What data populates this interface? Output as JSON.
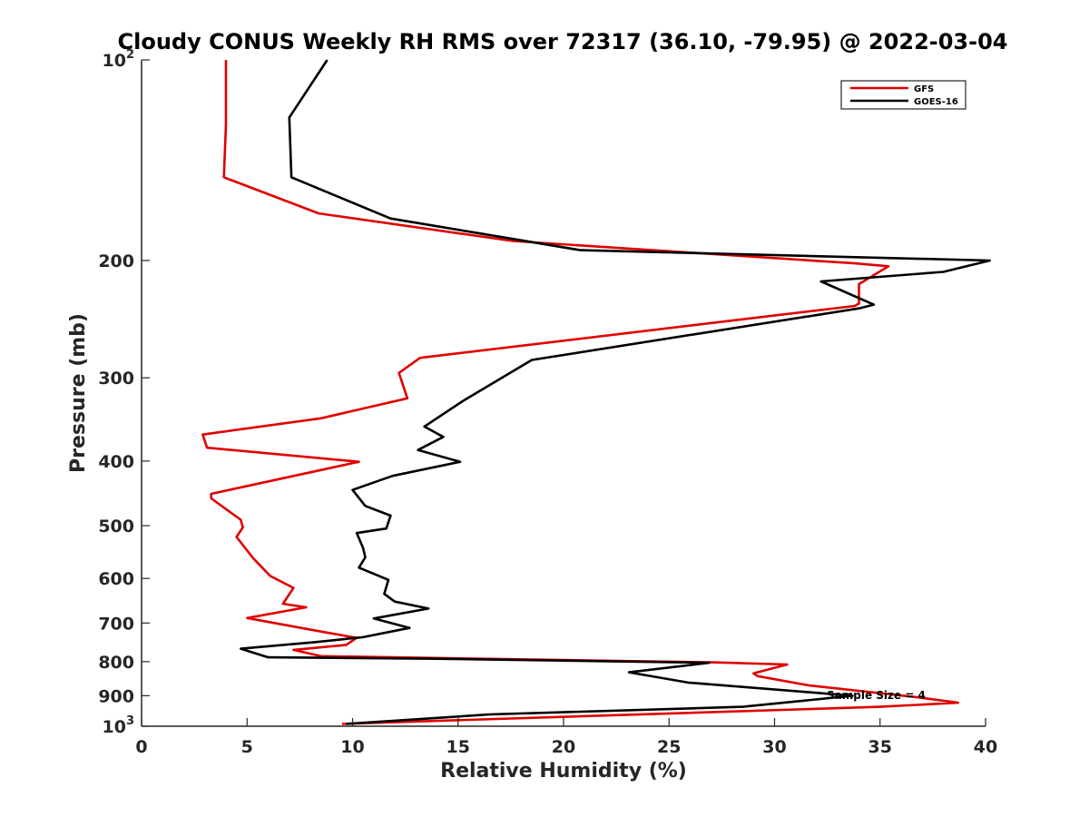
{
  "chart_data": {
    "type": "line",
    "title": "Cloudy CONUS Weekly RH RMS over 72317 (36.10, -79.95) @ 2022-03-04",
    "xlabel": "Relative Humidity (%)",
    "ylabel": "Pressure (mb)",
    "xlim": [
      0,
      40
    ],
    "ylim": [
      100,
      1000
    ],
    "y_scale": "log",
    "y_reversed": true,
    "x_ticks": [
      0,
      5,
      10,
      15,
      20,
      25,
      30,
      35,
      40
    ],
    "y_ticks": [
      {
        "value": 100,
        "base": "10",
        "exp": "2"
      },
      {
        "value": 200,
        "label": "200"
      },
      {
        "value": 300,
        "label": "300"
      },
      {
        "value": 400,
        "label": "400"
      },
      {
        "value": 500,
        "label": "500"
      },
      {
        "value": 600,
        "label": "600"
      },
      {
        "value": 700,
        "label": "700"
      },
      {
        "value": 800,
        "label": "800"
      },
      {
        "value": 900,
        "label": "900"
      },
      {
        "value": 1000,
        "base": "10",
        "exp": "3"
      }
    ],
    "grid": false,
    "legend_position": "top-right",
    "series": [
      {
        "name": "GFS",
        "color": "#e00000",
        "points": [
          [
            4.0,
            100
          ],
          [
            4.0,
            125
          ],
          [
            3.9,
            150
          ],
          [
            8.4,
            170
          ],
          [
            17.6,
            187
          ],
          [
            33.8,
            202
          ],
          [
            35.4,
            204
          ],
          [
            34.0,
            217
          ],
          [
            34.0,
            232
          ],
          [
            33.8,
            234
          ],
          [
            13.2,
            280
          ],
          [
            12.2,
            295
          ],
          [
            12.6,
            322
          ],
          [
            8.5,
            345
          ],
          [
            2.9,
            365
          ],
          [
            3.1,
            382
          ],
          [
            10.3,
            401
          ],
          [
            3.3,
            448
          ],
          [
            3.3,
            455
          ],
          [
            4.7,
            490
          ],
          [
            4.8,
            503
          ],
          [
            4.5,
            520
          ],
          [
            5.3,
            560
          ],
          [
            6.1,
            595
          ],
          [
            7.2,
            620
          ],
          [
            6.7,
            655
          ],
          [
            7.8,
            663
          ],
          [
            5.0,
            688
          ],
          [
            8.5,
            721
          ],
          [
            10.2,
            737
          ],
          [
            9.7,
            755
          ],
          [
            7.2,
            768
          ],
          [
            8.5,
            785
          ],
          [
            27.2,
            802
          ],
          [
            30.6,
            808
          ],
          [
            29.0,
            833
          ],
          [
            29.2,
            841
          ],
          [
            31.6,
            868
          ],
          [
            36.8,
            905
          ],
          [
            38.7,
            922
          ],
          [
            35.0,
            935
          ],
          [
            9.5,
            992
          ]
        ]
      },
      {
        "name": "GOES-16",
        "color": "#000000",
        "points": [
          [
            8.8,
            100
          ],
          [
            7.0,
            122
          ],
          [
            7.1,
            150
          ],
          [
            11.8,
            173
          ],
          [
            20.8,
            193
          ],
          [
            40.2,
            200
          ],
          [
            38.0,
            208
          ],
          [
            32.2,
            215
          ],
          [
            34.7,
            233
          ],
          [
            34.0,
            236
          ],
          [
            18.5,
            282
          ],
          [
            15.3,
            324
          ],
          [
            13.4,
            355
          ],
          [
            14.3,
            368
          ],
          [
            13.1,
            385
          ],
          [
            15.1,
            401
          ],
          [
            11.9,
            421
          ],
          [
            10.0,
            442
          ],
          [
            10.6,
            467
          ],
          [
            11.8,
            483
          ],
          [
            11.6,
            505
          ],
          [
            10.2,
            513
          ],
          [
            10.5,
            540
          ],
          [
            10.6,
            558
          ],
          [
            10.3,
            578
          ],
          [
            11.7,
            603
          ],
          [
            11.5,
            633
          ],
          [
            12.0,
            650
          ],
          [
            13.6,
            666
          ],
          [
            11.0,
            689
          ],
          [
            12.7,
            712
          ],
          [
            10.5,
            735
          ],
          [
            8.2,
            748
          ],
          [
            4.7,
            765
          ],
          [
            6.0,
            788
          ],
          [
            14.0,
            792
          ],
          [
            26.9,
            803
          ],
          [
            23.1,
            830
          ],
          [
            25.9,
            860
          ],
          [
            33.7,
            900
          ],
          [
            28.5,
            935
          ],
          [
            16.5,
            960
          ],
          [
            9.7,
            992
          ]
        ]
      }
    ],
    "annotation": "Sample Size = 4"
  }
}
